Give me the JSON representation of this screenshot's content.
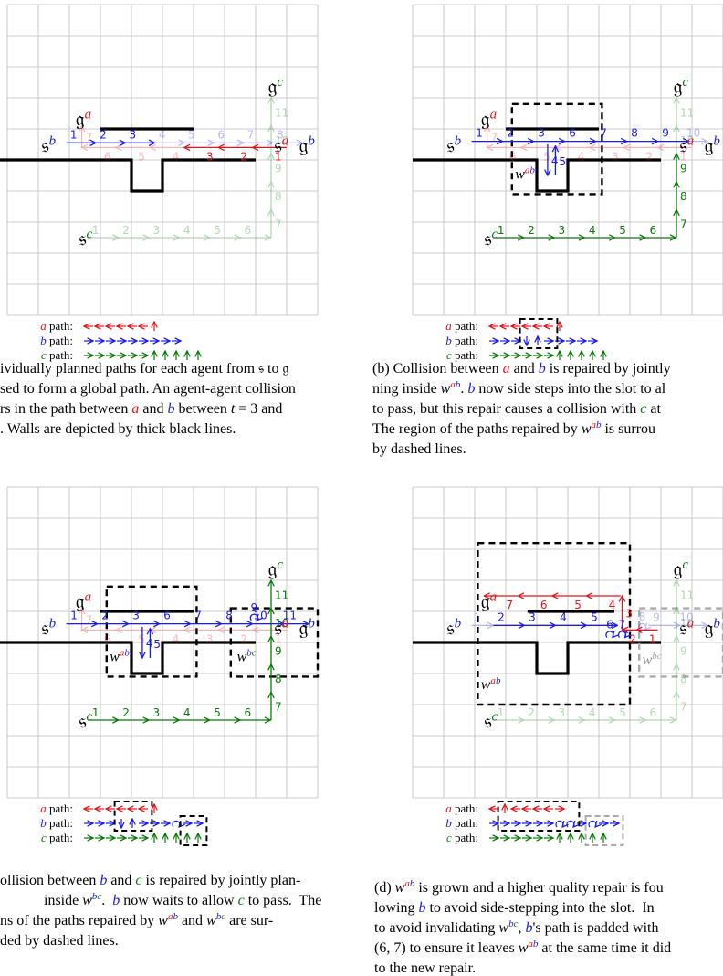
{
  "panels": [
    {
      "labels": [
        {
          "base": "𝔰",
          "sup": "b"
        },
        {
          "base": "𝔤",
          "sup": "a"
        },
        {
          "base": "𝔰",
          "sup": "a"
        },
        {
          "base": "𝔤",
          "sup": "b"
        },
        {
          "base": "𝔤",
          "sup": "c"
        },
        {
          "base": "𝔰",
          "sup": "c"
        }
      ],
      "windows": [],
      "steps": {
        "a": [
          "1",
          "2",
          "3",
          "4",
          "5",
          "6",
          "7"
        ],
        "b": [
          "1",
          "2",
          "3",
          "4",
          "5",
          "6",
          "7",
          "8"
        ],
        "c": [
          "1",
          "2",
          "3",
          "4",
          "5",
          "6",
          "7",
          "8",
          "9",
          "10",
          "11"
        ]
      },
      "legend": [
        [
          {
            "text": "a",
            "style": "a"
          },
          " path:"
        ],
        [
          {
            "text": "b",
            "style": "b"
          },
          " path:"
        ],
        [
          {
            "text": "c",
            "style": "c"
          },
          " path:"
        ]
      ],
      "caption": [
        [
          "ividually planned paths for each agent from 𝔰 to 𝔤"
        ],
        [
          "sed to form a global path. An agent-agent collision"
        ],
        [
          "rs in the path between ",
          {
            "text": "a",
            "style": "a"
          },
          " and ",
          {
            "text": "b",
            "style": "b"
          },
          " between ",
          {
            "text": "t",
            "style": "i"
          },
          " = 3 and"
        ],
        [
          ". Walls are depicted by thick black lines."
        ]
      ]
    },
    {
      "labels": [
        {
          "base": "𝔰",
          "sup": "b"
        },
        {
          "base": "𝔤",
          "sup": "a"
        },
        {
          "base": "𝔰",
          "sup": "a"
        },
        {
          "base": "𝔤",
          "sup": "b"
        },
        {
          "base": "𝔤",
          "sup": "c"
        },
        {
          "base": "𝔰",
          "sup": "c"
        }
      ],
      "windows": [
        {
          "base": "w",
          "sup": [
            "a",
            "b"
          ]
        }
      ],
      "steps": {
        "a": [
          "1",
          "2",
          "3",
          "4",
          "5",
          "6",
          "7"
        ],
        "b": [
          "1",
          "2",
          "3",
          "4",
          "5",
          "6",
          "7",
          "8",
          "9",
          "10"
        ],
        "c": [
          "1",
          "2",
          "3",
          "4",
          "5",
          "6",
          "7",
          "8",
          "9",
          "10",
          "11"
        ]
      },
      "legend": [
        [
          {
            "text": "a",
            "style": "a"
          },
          " path:"
        ],
        [
          {
            "text": "b",
            "style": "b"
          },
          " path:"
        ],
        [
          {
            "text": "c",
            "style": "c"
          },
          " path:"
        ]
      ],
      "caption": [
        [
          "(b) Collision between ",
          {
            "text": "a",
            "style": "a"
          },
          " and ",
          {
            "text": "b",
            "style": "b"
          },
          " is repaired by jointly"
        ],
        [
          "ning inside ",
          {
            "text": "w",
            "style": "i"
          },
          {
            "text": "a",
            "style": "sa"
          },
          {
            "text": "b",
            "style": "sb"
          },
          ". ",
          {
            "text": "b",
            "style": "b"
          },
          " now side steps into the slot to al"
        ],
        [
          "to pass, but this repair causes a collision with ",
          {
            "text": "c",
            "style": "c"
          },
          " at"
        ],
        [
          "The region of the paths repaired by ",
          {
            "text": "w",
            "style": "i"
          },
          {
            "text": "a",
            "style": "sa"
          },
          {
            "text": "b",
            "style": "sb"
          },
          " is surrou"
        ],
        [
          "by dashed lines."
        ]
      ]
    },
    {
      "labels": [
        {
          "base": "𝔰",
          "sup": "b"
        },
        {
          "base": "𝔤",
          "sup": "a"
        },
        {
          "base": "𝔰",
          "sup": "a"
        },
        {
          "base": "𝔤",
          "sup": "b"
        },
        {
          "base": "𝔤",
          "sup": "c"
        },
        {
          "base": "𝔰",
          "sup": "c"
        }
      ],
      "windows": [
        {
          "base": "w",
          "sup": [
            "a",
            "b"
          ]
        },
        {
          "base": "w",
          "sup": [
            "b",
            "c"
          ]
        }
      ],
      "steps": {
        "a": [
          "1",
          "2",
          "3",
          "4",
          "5",
          "6",
          "7"
        ],
        "b": [
          "1",
          "2",
          "3",
          "4",
          "5",
          "6",
          "7",
          "8",
          "9",
          "10",
          "11"
        ],
        "c": [
          "1",
          "2",
          "3",
          "4",
          "5",
          "6",
          "7",
          "8",
          "9",
          "10",
          "11"
        ]
      },
      "legend": [
        [
          {
            "text": "a",
            "style": "a"
          },
          " path:"
        ],
        [
          {
            "text": "b",
            "style": "b"
          },
          " path:"
        ],
        [
          {
            "text": "c",
            "style": "c"
          },
          " path:"
        ]
      ],
      "caption": [
        [
          "ollision between ",
          {
            "text": "b",
            "style": "b"
          },
          " and ",
          {
            "text": "c",
            "style": "c"
          },
          " is repaired by jointly plan-"
        ],
        [
          "inside ",
          {
            "text": "w",
            "style": "i"
          },
          {
            "text": "b",
            "style": "sb"
          },
          {
            "text": "c",
            "style": "sc"
          },
          ".  ",
          {
            "text": "b",
            "style": "b"
          },
          " now waits to allow ",
          {
            "text": "c",
            "style": "c"
          },
          " to pass.  The"
        ],
        [
          "ns of the paths repaired by ",
          {
            "text": "w",
            "style": "i"
          },
          {
            "text": "a",
            "style": "sa"
          },
          {
            "text": "b",
            "style": "sb"
          },
          " and ",
          {
            "text": "w",
            "style": "i"
          },
          {
            "text": "b",
            "style": "sb"
          },
          {
            "text": "c",
            "style": "sc"
          },
          " are sur-"
        ],
        [
          "ded by dashed lines."
        ]
      ]
    },
    {
      "labels": [
        {
          "base": "𝔰",
          "sup": "b"
        },
        {
          "base": "𝔤",
          "sup": "a"
        },
        {
          "base": "𝔰",
          "sup": "a"
        },
        {
          "base": "𝔤",
          "sup": "b"
        },
        {
          "base": "𝔤",
          "sup": "c"
        },
        {
          "base": "𝔰",
          "sup": "c"
        }
      ],
      "windows": [
        {
          "base": "w",
          "sup": [
            "a",
            "b"
          ]
        },
        {
          "base": "w",
          "sup": [
            "b",
            "c"
          ]
        }
      ],
      "steps": {
        "a": [
          "1",
          "2",
          "3",
          "4",
          "5",
          "6",
          "7"
        ],
        "b": [
          "1",
          "2",
          "3",
          "4",
          "5",
          "6",
          "7",
          "8",
          "9",
          "10"
        ],
        "c": [
          "1",
          "2",
          "3",
          "4",
          "5",
          "6",
          "7",
          "8",
          "9",
          "10",
          "11"
        ]
      },
      "legend": [
        [
          {
            "text": "a",
            "style": "a"
          },
          " path:"
        ],
        [
          {
            "text": "b",
            "style": "b"
          },
          " path:"
        ],
        [
          {
            "text": "c",
            "style": "c"
          },
          " path:"
        ]
      ],
      "caption": [
        [
          "(d) ",
          {
            "text": "w",
            "style": "i"
          },
          {
            "text": "a",
            "style": "sa"
          },
          {
            "text": "b",
            "style": "sb"
          },
          " is grown and a higher quality repair is fou"
        ],
        [
          "lowing ",
          {
            "text": "b",
            "style": "b"
          },
          " to avoid side-stepping into the slot.  In"
        ],
        [
          "to avoid invalidating ",
          {
            "text": "w",
            "style": "i"
          },
          {
            "text": "b",
            "style": "sb"
          },
          {
            "text": "c",
            "style": "sc"
          },
          ", ",
          {
            "text": "b",
            "style": "b"
          },
          "'s path is padded with"
        ],
        [
          "(6, 7) to ensure it leaves ",
          {
            "text": "w",
            "style": "i"
          },
          {
            "text": "a",
            "style": "sa"
          },
          {
            "text": "b",
            "style": "sb"
          },
          " at the same time it did"
        ],
        [
          "to the new repair."
        ]
      ]
    }
  ]
}
